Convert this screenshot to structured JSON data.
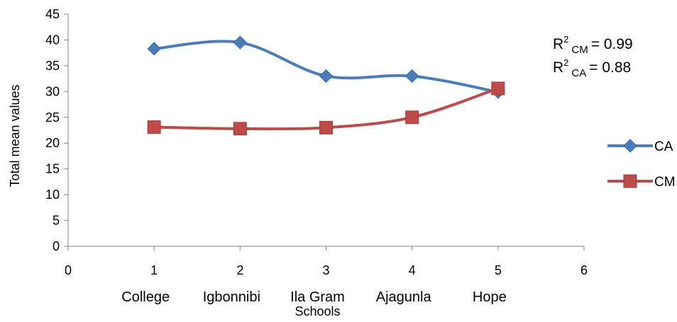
{
  "chart_data": {
    "type": "line",
    "title": "",
    "ylabel": "Total mean values",
    "xlim": [
      0,
      6
    ],
    "ylim": [
      0,
      45
    ],
    "x_ticks": [
      0,
      1,
      2,
      3,
      4,
      5,
      6
    ],
    "y_ticks": [
      0,
      5,
      10,
      15,
      20,
      25,
      30,
      35,
      40,
      45
    ],
    "categories": [
      {
        "x": 1,
        "label": [
          "College"
        ]
      },
      {
        "x": 2,
        "label": [
          "Igbonnibi"
        ]
      },
      {
        "x": 3,
        "label": [
          "Ila Gram",
          "Schools"
        ]
      },
      {
        "x": 4,
        "label": [
          "Ajagunla"
        ]
      },
      {
        "x": 5,
        "label": [
          "Hope"
        ]
      }
    ],
    "series": [
      {
        "name": "CA",
        "color": "#4A7EBB",
        "marker": "diamond",
        "smooth": true,
        "x": [
          1,
          2,
          3,
          4,
          5
        ],
        "y": [
          38.3,
          39.5,
          33.0,
          33.0,
          29.9
        ]
      },
      {
        "name": "CM",
        "color": "#BE4B48",
        "marker": "square",
        "smooth": true,
        "x": [
          1,
          2,
          3,
          4,
          5
        ],
        "y": [
          23.1,
          22.8,
          23.0,
          25.0,
          30.6
        ]
      }
    ],
    "annotations": [
      {
        "base": "R",
        "sup": "2",
        "sub": "CM",
        "value": "=  0.99"
      },
      {
        "base": "R",
        "sup": "2",
        "sub": "CA",
        "value": "=  0.88"
      }
    ],
    "legend": "right"
  }
}
